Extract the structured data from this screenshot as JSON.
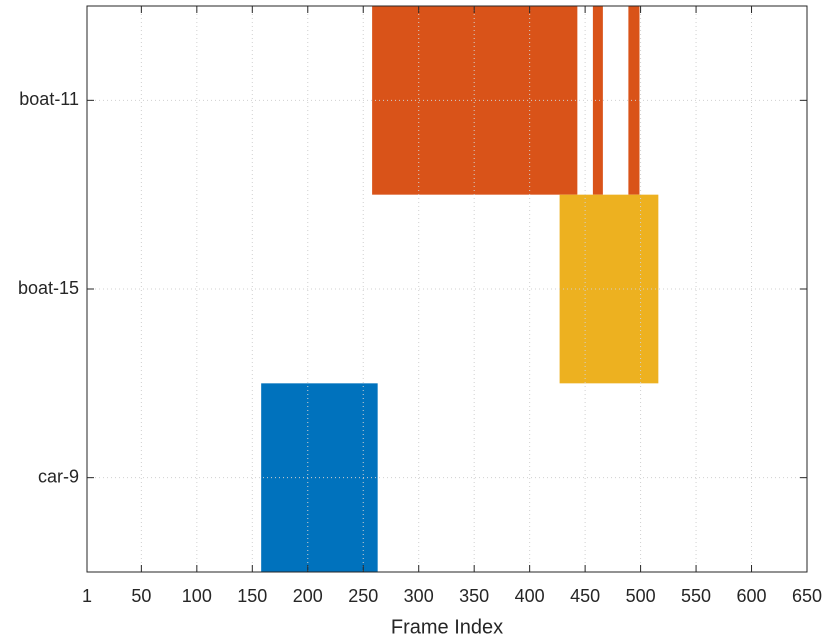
{
  "chart_data": {
    "type": "timeline",
    "x_label": "Frame Index",
    "rows": [
      {
        "label": "boat-11",
        "color": "#d95319",
        "intervals": [
          [
            258,
            443
          ],
          [
            457,
            466
          ],
          [
            489,
            499
          ]
        ]
      },
      {
        "label": "boat-15",
        "color": "#edb120",
        "intervals": [
          [
            427,
            516
          ]
        ]
      },
      {
        "label": "car-9",
        "color": "#0072bd",
        "intervals": [
          [
            158,
            263
          ]
        ]
      }
    ],
    "xlim": [
      1,
      650
    ],
    "xticks": [
      1,
      50,
      100,
      150,
      200,
      250,
      300,
      350,
      400,
      450,
      500,
      550,
      600,
      650
    ],
    "grid": true
  }
}
